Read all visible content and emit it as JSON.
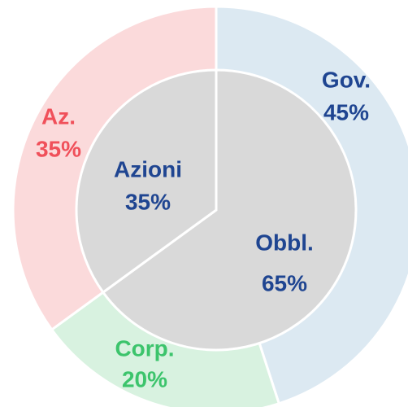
{
  "chart_data": [
    {
      "type": "pie",
      "categories": [
        "Obbl.",
        "Azioni"
      ],
      "values": [
        65,
        35
      ],
      "value_labels": [
        "65%",
        "35%"
      ],
      "colors": [
        "#d9d9d9",
        "#d9d9d9"
      ],
      "label_colors": [
        "#1f4591",
        "#1f4591"
      ]
    },
    {
      "type": "donut",
      "categories": [
        "Gov.",
        "Corp.",
        "Az."
      ],
      "values": [
        45,
        20,
        35
      ],
      "value_labels": [
        "45%",
        "20%",
        "35%"
      ],
      "colors": [
        "#dce9f2",
        "#d8f2e0",
        "#fbdadb"
      ],
      "label_colors": [
        "#1f4591",
        "#3cc46c",
        "#f0505a"
      ]
    }
  ]
}
